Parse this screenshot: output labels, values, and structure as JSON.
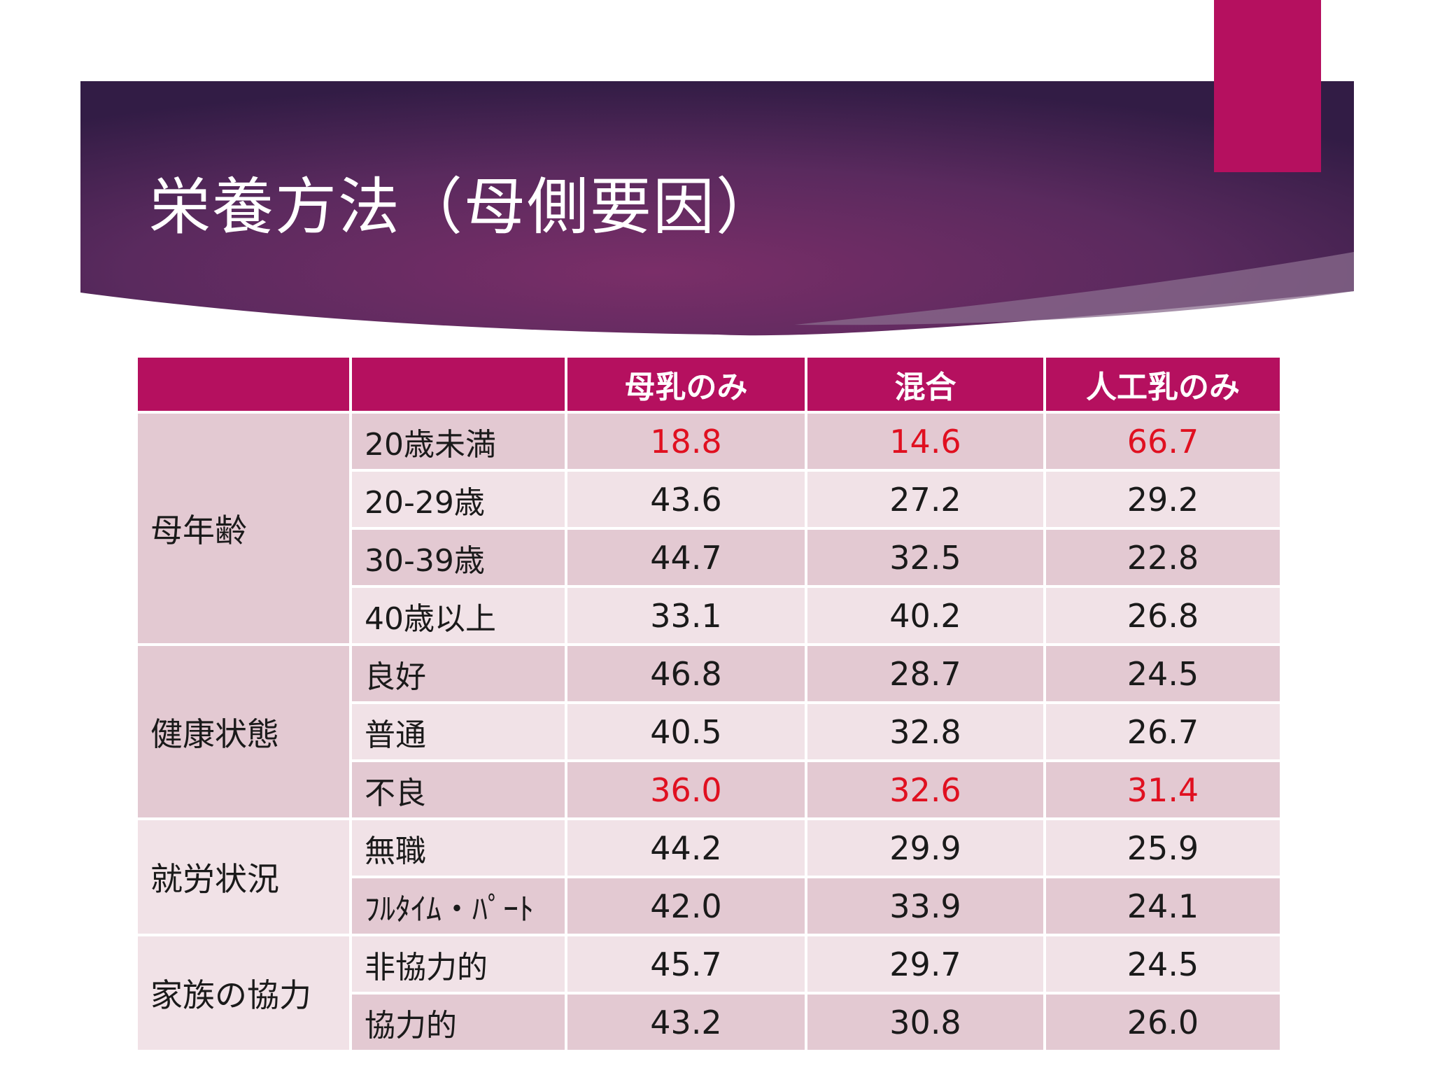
{
  "slide": {
    "title": "栄養方法（母側要因）",
    "colors": {
      "banner_dark": "#3a1f4f",
      "banner_mid": "#6b2d62",
      "accent": "#b5105f",
      "highlight_text": "#e01020"
    }
  },
  "table": {
    "headers": [
      "",
      "",
      "母乳のみ",
      "混合",
      "人工乳のみ"
    ],
    "groups": [
      {
        "label": "母年齢",
        "rows": [
          {
            "label": "20歳未満",
            "values": [
              "18.8",
              "14.6",
              "66.7"
            ],
            "highlight": true
          },
          {
            "label": "20-29歳",
            "values": [
              "43.6",
              "27.2",
              "29.2"
            ],
            "highlight": false
          },
          {
            "label": "30-39歳",
            "values": [
              "44.7",
              "32.5",
              "22.8"
            ],
            "highlight": false
          },
          {
            "label": "40歳以上",
            "values": [
              "33.1",
              "40.2",
              "26.8"
            ],
            "highlight": false
          }
        ]
      },
      {
        "label": "健康状態",
        "rows": [
          {
            "label": "良好",
            "values": [
              "46.8",
              "28.7",
              "24.5"
            ],
            "highlight": false
          },
          {
            "label": "普通",
            "values": [
              "40.5",
              "32.8",
              "26.7"
            ],
            "highlight": false
          },
          {
            "label": "不良",
            "values": [
              "36.0",
              "32.6",
              "31.4"
            ],
            "highlight": true
          }
        ]
      },
      {
        "label": "就労状況",
        "rows": [
          {
            "label": "無職",
            "values": [
              "44.2",
              "29.9",
              "25.9"
            ],
            "highlight": false
          },
          {
            "label": "ﾌﾙﾀｲﾑ・ﾊﾟｰﾄ",
            "values": [
              "42.0",
              "33.9",
              "24.1"
            ],
            "highlight": false
          }
        ]
      },
      {
        "label": "家族の協力",
        "rows": [
          {
            "label": "非協力的",
            "values": [
              "45.7",
              "29.7",
              "24.5"
            ],
            "highlight": false
          },
          {
            "label": "協力的",
            "values": [
              "43.2",
              "30.8",
              "26.0"
            ],
            "highlight": false
          }
        ]
      }
    ]
  }
}
